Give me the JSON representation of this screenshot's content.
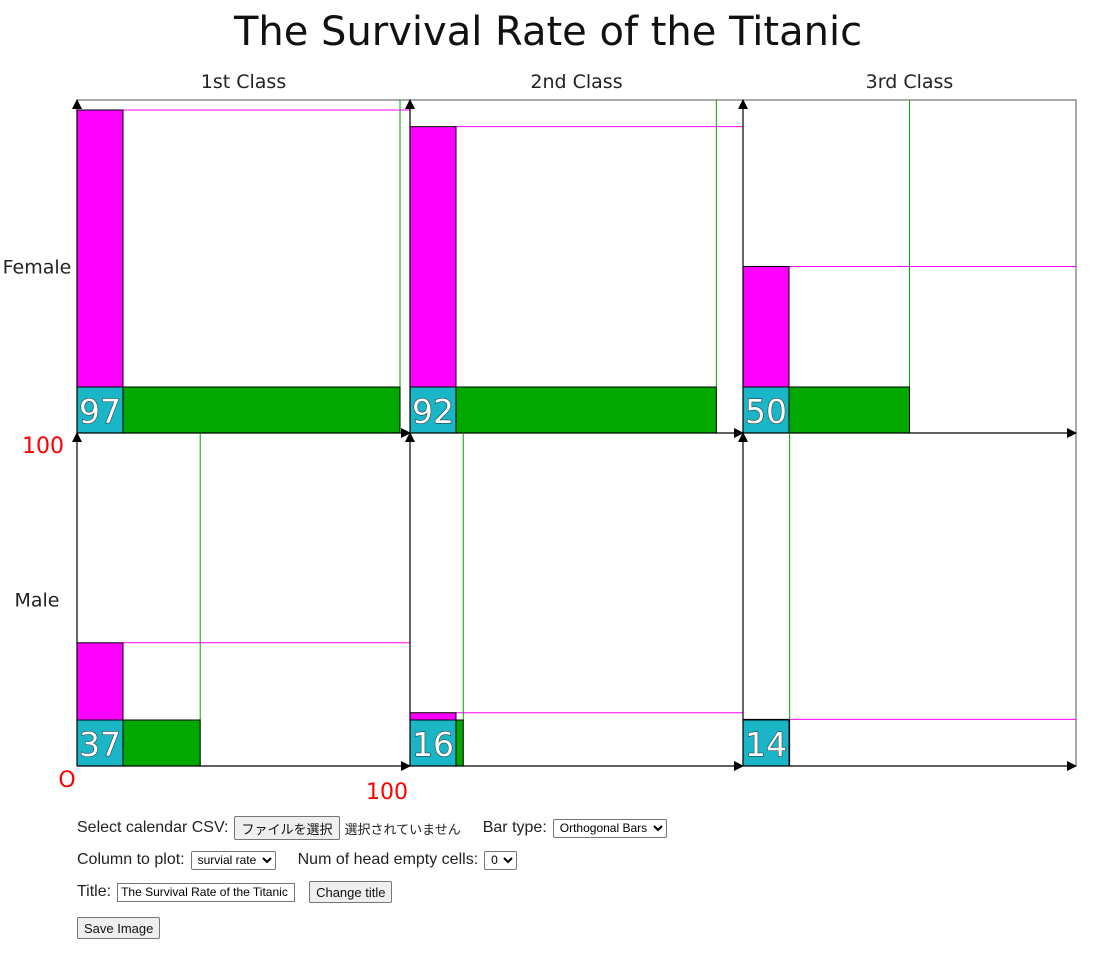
{
  "chart_data": {
    "type": "bar",
    "variant": "orthogonal-bars-grid",
    "title": "The Survival Rate of the Titanic",
    "columns": [
      "1st Class",
      "2nd Class",
      "3rd Class"
    ],
    "rows": [
      "Female",
      "Male"
    ],
    "cells": [
      [
        {
          "value": 97,
          "vertical": 97,
          "horizontal": 97
        },
        {
          "value": 92,
          "vertical": 92,
          "horizontal": 92
        },
        {
          "value": 50,
          "vertical": 50,
          "horizontal": 50
        }
      ],
      [
        {
          "value": 37,
          "vertical": 37,
          "horizontal": 37
        },
        {
          "value": 16,
          "vertical": 16,
          "horizontal": 16
        },
        {
          "value": 14,
          "vertical": 14,
          "horizontal": 14
        }
      ]
    ],
    "axis": {
      "min": 0,
      "max": 100,
      "origin_label": "O",
      "y_max_label": "100",
      "x_max_label": "100"
    },
    "colors": {
      "vertical": "#ff00ff",
      "horizontal": "#00a800",
      "label_box": "#1ab6c8",
      "axis_text": "#ff0000"
    }
  },
  "controls": {
    "csv_label": "Select calendar CSV:",
    "file_button": "ファイルを選択",
    "no_file": "選択されていません",
    "bar_type_label": "Bar type:",
    "bar_type_value": "Orthogonal Bars",
    "column_label": "Column to plot:",
    "column_value": "survial rate",
    "empty_cells_label": "Num of head empty cells:",
    "empty_cells_value": "0",
    "title_label": "Title:",
    "title_value": "The Survival Rate of the Titanic",
    "change_title_button": "Change title",
    "save_button": "Save Image"
  }
}
